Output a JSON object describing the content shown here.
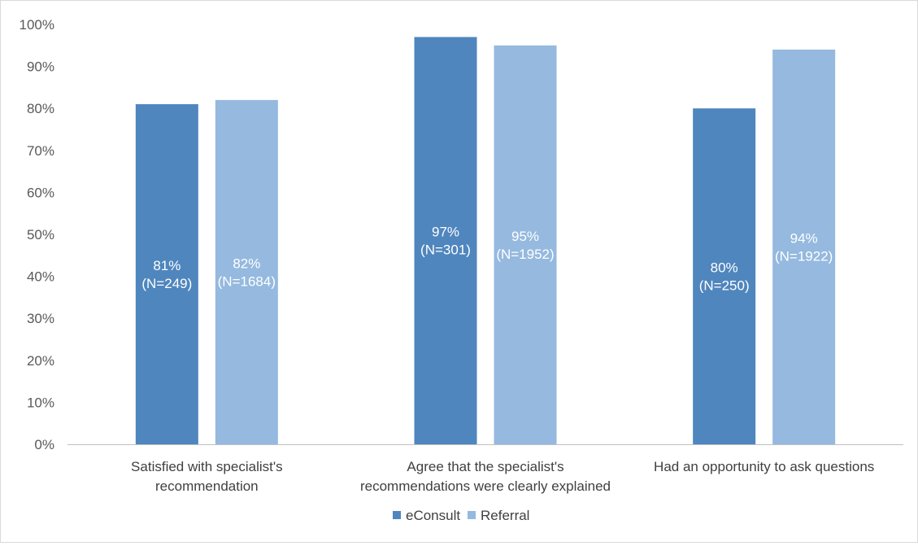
{
  "chart_data": {
    "type": "bar",
    "title": "",
    "xlabel": "",
    "ylabel": "",
    "ylim": [
      0,
      100
    ],
    "yticks": [
      "0%",
      "10%",
      "20%",
      "30%",
      "40%",
      "50%",
      "60%",
      "70%",
      "80%",
      "90%",
      "100%"
    ],
    "grid": false,
    "legend_position": "bottom",
    "categories": [
      [
        "Satisfied with specialist's",
        "recommendation"
      ],
      [
        "Agree that the specialist's",
        "recommendations were clearly explained"
      ],
      [
        "Had an opportunity to ask questions"
      ]
    ],
    "series": [
      {
        "name": "eConsult",
        "color": "#4f86be",
        "values": [
          81,
          97,
          80
        ],
        "labels": [
          [
            "81%",
            "(N=249)"
          ],
          [
            "97%",
            "(N=301)"
          ],
          [
            "80%",
            "(N=250)"
          ]
        ]
      },
      {
        "name": "Referral",
        "color": "#95b9df",
        "values": [
          82,
          95,
          94
        ],
        "labels": [
          [
            "82%",
            "(N=1684)"
          ],
          [
            "95%",
            "(N=1952)"
          ],
          [
            "94%",
            "(N=1922)"
          ]
        ]
      }
    ]
  }
}
